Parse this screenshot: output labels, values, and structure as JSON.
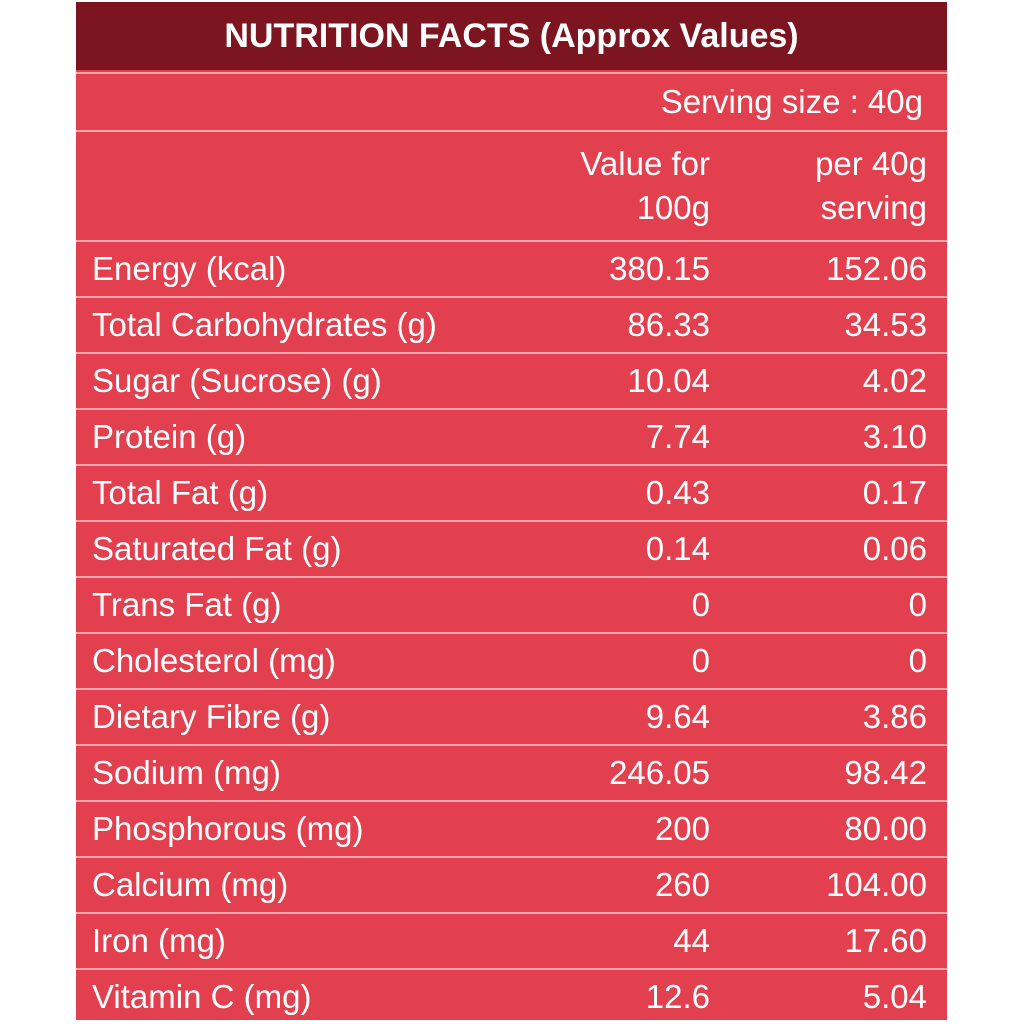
{
  "table": {
    "title": "NUTRITION FACTS (Approx Values)",
    "serving_size": "Serving size : 40g",
    "col1_line1": "Value for",
    "col1_line2": "100g",
    "col2_line1": "per 40g",
    "col2_line2": "serving",
    "colors": {
      "title_bg": "#7d1520",
      "body_bg": "#e2404f",
      "rule": "#f2a8ae"
    },
    "rows": [
      {
        "label": "Energy (kcal)",
        "per100": "380.15",
        "per40": "152.06"
      },
      {
        "label": "Total Carbohydrates (g)",
        "per100": "86.33",
        "per40": "34.53"
      },
      {
        "label": "Sugar (Sucrose) (g)",
        "per100": "10.04",
        "per40": "4.02"
      },
      {
        "label": "Protein (g)",
        "per100": "7.74",
        "per40": "3.10"
      },
      {
        "label": "Total Fat (g)",
        "per100": "0.43",
        "per40": "0.17"
      },
      {
        "label": "Saturated Fat (g)",
        "per100": "0.14",
        "per40": "0.06"
      },
      {
        "label": "Trans Fat (g)",
        "per100": "0",
        "per40": "0"
      },
      {
        "label": "Cholesterol (mg)",
        "per100": "0",
        "per40": "0"
      },
      {
        "label": "Dietary Fibre (g)",
        "per100": "9.64",
        "per40": "3.86"
      },
      {
        "label": "Sodium (mg)",
        "per100": "246.05",
        "per40": "98.42"
      },
      {
        "label": "Phosphorous (mg)",
        "per100": "200",
        "per40": "80.00"
      },
      {
        "label": "Calcium (mg)",
        "per100": "260",
        "per40": "104.00"
      },
      {
        "label": "Iron (mg)",
        "per100": "44",
        "per40": "17.60"
      },
      {
        "label": "Vitamin C (mg)",
        "per100": "12.6",
        "per40": "5.04"
      }
    ]
  }
}
